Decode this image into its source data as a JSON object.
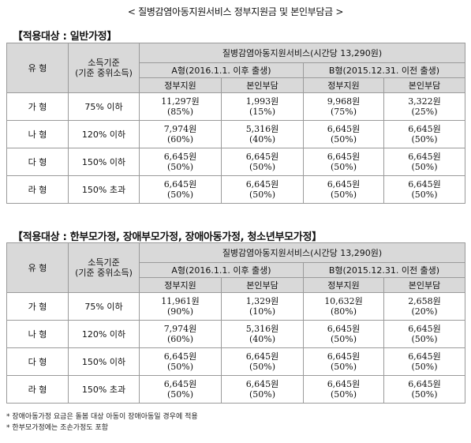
{
  "title": "< 질병감염아동지원서비스 정부지원금 및 본인부담금 >",
  "table_header": {
    "type": "유 형",
    "income_line1": "소득기준",
    "income_line2": "(기준 중위소득)",
    "service": "질병감염아동지원서비스(시간당 13,290원)",
    "type_a": "A형(2016.1.1. 이후 출생)",
    "type_b": "B형(2015.12.31. 이전 출생)",
    "gov": "정부지원",
    "self": "본인부담"
  },
  "sections": [
    {
      "title": "【적용대상 : 일반가정】",
      "rows": [
        {
          "type": "가 형",
          "income": "75% 이하",
          "a_gov": "11,297원",
          "a_gov_pct": "(85%)",
          "a_self": "1,993원",
          "a_self_pct": "(15%)",
          "b_gov": "9,968원",
          "b_gov_pct": "(75%)",
          "b_self": "3,322원",
          "b_self_pct": "(25%)"
        },
        {
          "type": "나 형",
          "income": "120% 이하",
          "a_gov": "7,974원",
          "a_gov_pct": "(60%)",
          "a_self": "5,316원",
          "a_self_pct": "(40%)",
          "b_gov": "6,645원",
          "b_gov_pct": "(50%)",
          "b_self": "6,645원",
          "b_self_pct": "(50%)"
        },
        {
          "type": "다 형",
          "income": "150% 이하",
          "a_gov": "6,645원",
          "a_gov_pct": "(50%)",
          "a_self": "6,645원",
          "a_self_pct": "(50%)",
          "b_gov": "6,645원",
          "b_gov_pct": "(50%)",
          "b_self": "6,645원",
          "b_self_pct": "(50%)"
        },
        {
          "type": "라 형",
          "income": "150% 초과",
          "a_gov": "6,645원",
          "a_gov_pct": "(50%)",
          "a_self": "6,645원",
          "a_self_pct": "(50%)",
          "b_gov": "6,645원",
          "b_gov_pct": "(50%)",
          "b_self": "6,645원",
          "b_self_pct": "(50%)"
        }
      ]
    },
    {
      "title": "【적용대상 : 한부모가정, 장애부모가정, 장애아동가정, 청소년부모가정】",
      "rows": [
        {
          "type": "가 형",
          "income": "75% 이하",
          "a_gov": "11,961원",
          "a_gov_pct": "(90%)",
          "a_self": "1,329원",
          "a_self_pct": "(10%)",
          "b_gov": "10,632원",
          "b_gov_pct": "(80%)",
          "b_self": "2,658원",
          "b_self_pct": "(20%)"
        },
        {
          "type": "나 형",
          "income": "120% 이하",
          "a_gov": "7,974원",
          "a_gov_pct": "(60%)",
          "a_self": "5,316원",
          "a_self_pct": "(40%)",
          "b_gov": "6,645원",
          "b_gov_pct": "(50%)",
          "b_self": "6,645원",
          "b_self_pct": "(50%)"
        },
        {
          "type": "다 형",
          "income": "150% 이하",
          "a_gov": "6,645원",
          "a_gov_pct": "(50%)",
          "a_self": "6,645원",
          "a_self_pct": "(50%)",
          "b_gov": "6,645원",
          "b_gov_pct": "(50%)",
          "b_self": "6,645원",
          "b_self_pct": "(50%)"
        },
        {
          "type": "라 형",
          "income": "150% 초과",
          "a_gov": "6,645원",
          "a_gov_pct": "(50%)",
          "a_self": "6,645원",
          "a_self_pct": "(50%)",
          "b_gov": "6,645원",
          "b_gov_pct": "(50%)",
          "b_self": "6,645원",
          "b_self_pct": "(50%)"
        }
      ]
    }
  ],
  "notes": [
    "* 장애아동가정 요금은 돌봄 대상 아동이 장애아동일 경우에 적용",
    "* 한부모가정에는 조손가정도 포함"
  ]
}
